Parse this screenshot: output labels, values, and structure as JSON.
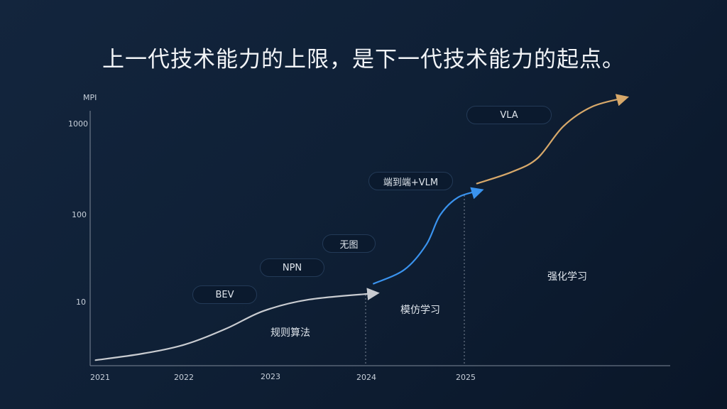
{
  "title": "上一代技术能力的上限，是下一代技术能力的起点。",
  "chart_data": {
    "type": "line",
    "ylabel": "MPI",
    "yscale": "log",
    "yticks": [
      "10",
      "100",
      "1000"
    ],
    "xticks": [
      "2021",
      "2022",
      "2023",
      "2024",
      "2025"
    ],
    "grid": false,
    "dividers": [
      2024,
      2025
    ],
    "series": [
      {
        "name": "规则算法",
        "color": "#c9ccd1",
        "x": [
          2020.98,
          2021.52,
          2022.02,
          2022.5,
          2022.93,
          2023.41,
          2024.11
        ],
        "y": [
          2.2,
          2.6,
          3.3,
          5.0,
          7.9,
          10.6,
          12.5
        ]
      },
      {
        "name": "模仿学习",
        "color": "#3a93ee",
        "x": [
          2024.08,
          2024.39,
          2024.61,
          2024.75,
          2024.93,
          2025.16
        ],
        "y": [
          16,
          23,
          44,
          95,
          150,
          180
        ]
      },
      {
        "name": "强化学习",
        "color": "#d7a86a",
        "x": [
          2025.12,
          2025.47,
          2025.73,
          2025.99,
          2026.28,
          2026.62
        ],
        "y": [
          215,
          290,
          415,
          950,
          1580,
          2000
        ]
      }
    ],
    "annotations": [
      "BEV",
      "NPN",
      "无图",
      "端到端+VLM",
      "VLA"
    ]
  }
}
